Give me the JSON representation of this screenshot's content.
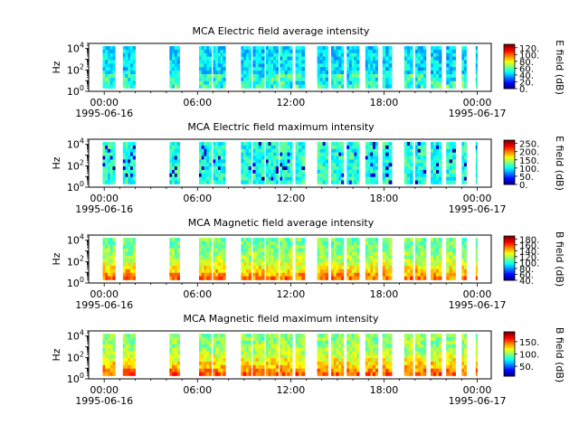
{
  "chart_data": [
    {
      "type": "heatmap",
      "title": "MCA  Electric field average intensity",
      "ylabel": "Hz",
      "colorbar_label": "E field (dB)",
      "colorbar_ticks": [
        "0.",
        "20.",
        "40.",
        "60.",
        "80.",
        "100.",
        "120."
      ],
      "colorbar_range": [
        0,
        130
      ],
      "colormap": "jet",
      "dominant_level_db": 45,
      "ylim": [
        1,
        30000
      ],
      "yscale": "log"
    },
    {
      "type": "heatmap",
      "title": "MCA  Electric field maximum intensity",
      "ylabel": "Hz",
      "colorbar_label": "E field (dB)",
      "colorbar_ticks": [
        "0.",
        "50.",
        "100.",
        "150.",
        "200.",
        "250."
      ],
      "colorbar_range": [
        0,
        270
      ],
      "colormap": "jet",
      "dominant_level_db": 110,
      "ylim": [
        1,
        30000
      ],
      "yscale": "log"
    },
    {
      "type": "heatmap",
      "title": "MCA  Magnetic field average intensity",
      "ylabel": "Hz",
      "colorbar_label": "B field (dB)",
      "colorbar_ticks": [
        "40.",
        "60.",
        "80.",
        "100.",
        "120.",
        "140.",
        "160.",
        "180."
      ],
      "colorbar_range": [
        40,
        190
      ],
      "colormap": "jet",
      "dominant_level_db": 120,
      "ylim": [
        1,
        30000
      ],
      "yscale": "log"
    },
    {
      "type": "heatmap",
      "title": "MCA  Magnetic field maximum intensity",
      "ylabel": "Hz",
      "colorbar_label": "B field (dB)",
      "colorbar_ticks": [
        "50.",
        "100.",
        "150."
      ],
      "colorbar_range": [
        10,
        190
      ],
      "colormap": "jet",
      "dominant_level_db": 110,
      "ylim": [
        1,
        30000
      ],
      "yscale": "log"
    }
  ],
  "shared": {
    "x_ticks": [
      "00:00",
      "06:00",
      "12:00",
      "18:00",
      "00:00"
    ],
    "x_tick_hours": [
      0,
      6,
      12,
      18,
      24
    ],
    "x_date_labels": [
      {
        "text": "1995-06-16",
        "hour": 0
      },
      {
        "text": "1995-06-17",
        "hour": 24
      }
    ],
    "x_range_hours": [
      -1,
      24.9
    ],
    "y_tick_exponents": [
      0,
      2,
      4
    ],
    "data_intervals_hours": [
      [
        -0.1,
        0.7
      ],
      [
        1.2,
        2.0
      ],
      [
        4.2,
        4.85
      ],
      [
        6.1,
        6.9
      ],
      [
        7.0,
        7.8
      ],
      [
        8.8,
        9.45
      ],
      [
        9.55,
        10.3
      ],
      [
        10.4,
        11.2
      ],
      [
        11.3,
        12.1
      ],
      [
        12.3,
        12.9
      ],
      [
        13.7,
        14.4
      ],
      [
        14.6,
        15.4
      ],
      [
        15.6,
        16.4
      ],
      [
        16.8,
        17.6
      ],
      [
        17.9,
        18.5
      ],
      [
        19.3,
        19.85
      ],
      [
        20.0,
        20.7
      ],
      [
        21.0,
        21.7
      ],
      [
        22.0,
        22.6
      ],
      [
        23.0,
        23.3
      ],
      [
        23.9,
        24.0
      ]
    ]
  },
  "colors": {
    "colormap_stops": [
      "#00007f",
      "#0000ff",
      "#007fff",
      "#00ffff",
      "#7fff7f",
      "#ffff00",
      "#ff7f00",
      "#ff0000",
      "#7f0000"
    ]
  }
}
